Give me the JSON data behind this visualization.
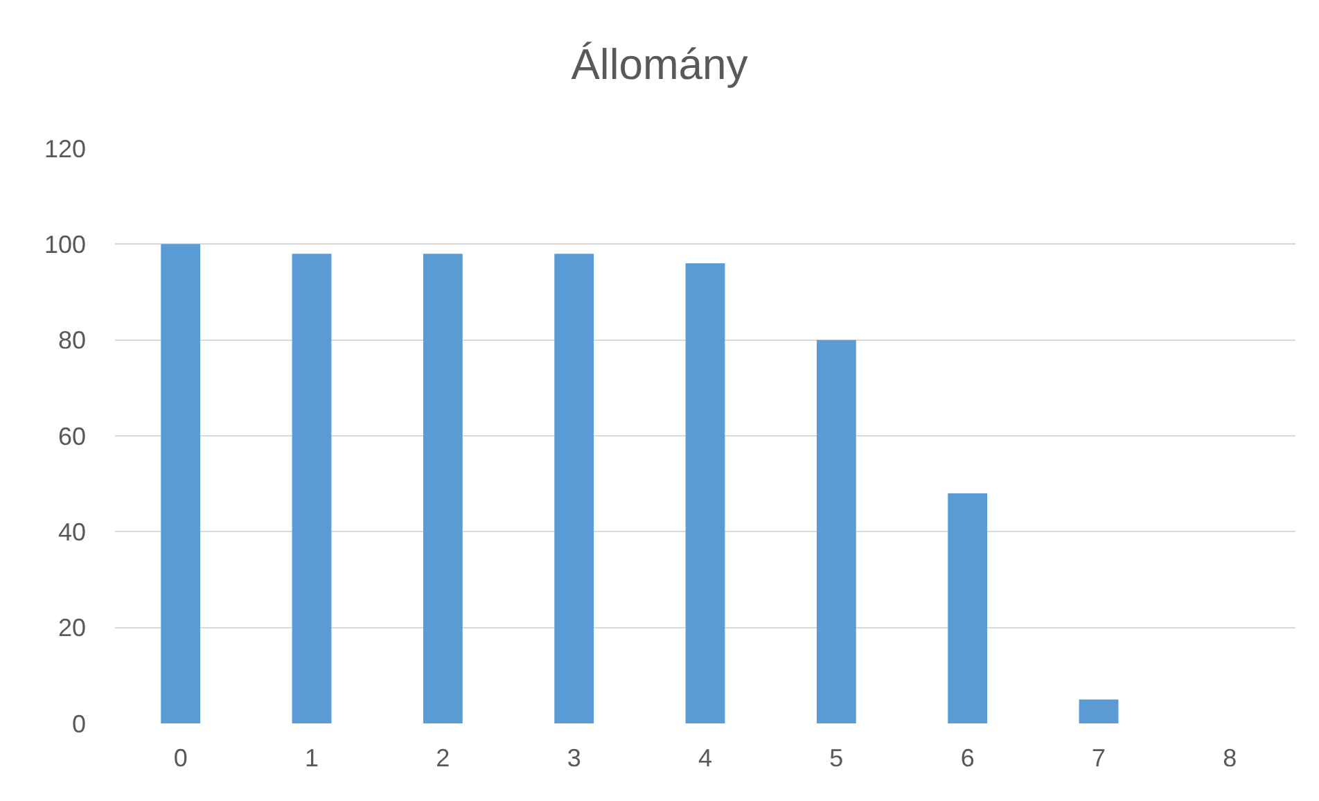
{
  "chart_data": {
    "type": "bar",
    "title": "Állomány",
    "categories": [
      "0",
      "1",
      "2",
      "3",
      "4",
      "5",
      "6",
      "7",
      "8"
    ],
    "values": [
      100,
      98,
      98,
      98,
      96,
      80,
      48,
      5,
      0
    ],
    "color": "#5b9bd5",
    "ylim": [
      0,
      120
    ],
    "yticks": [
      0,
      20,
      40,
      60,
      80,
      100,
      120
    ],
    "grid": "y"
  }
}
